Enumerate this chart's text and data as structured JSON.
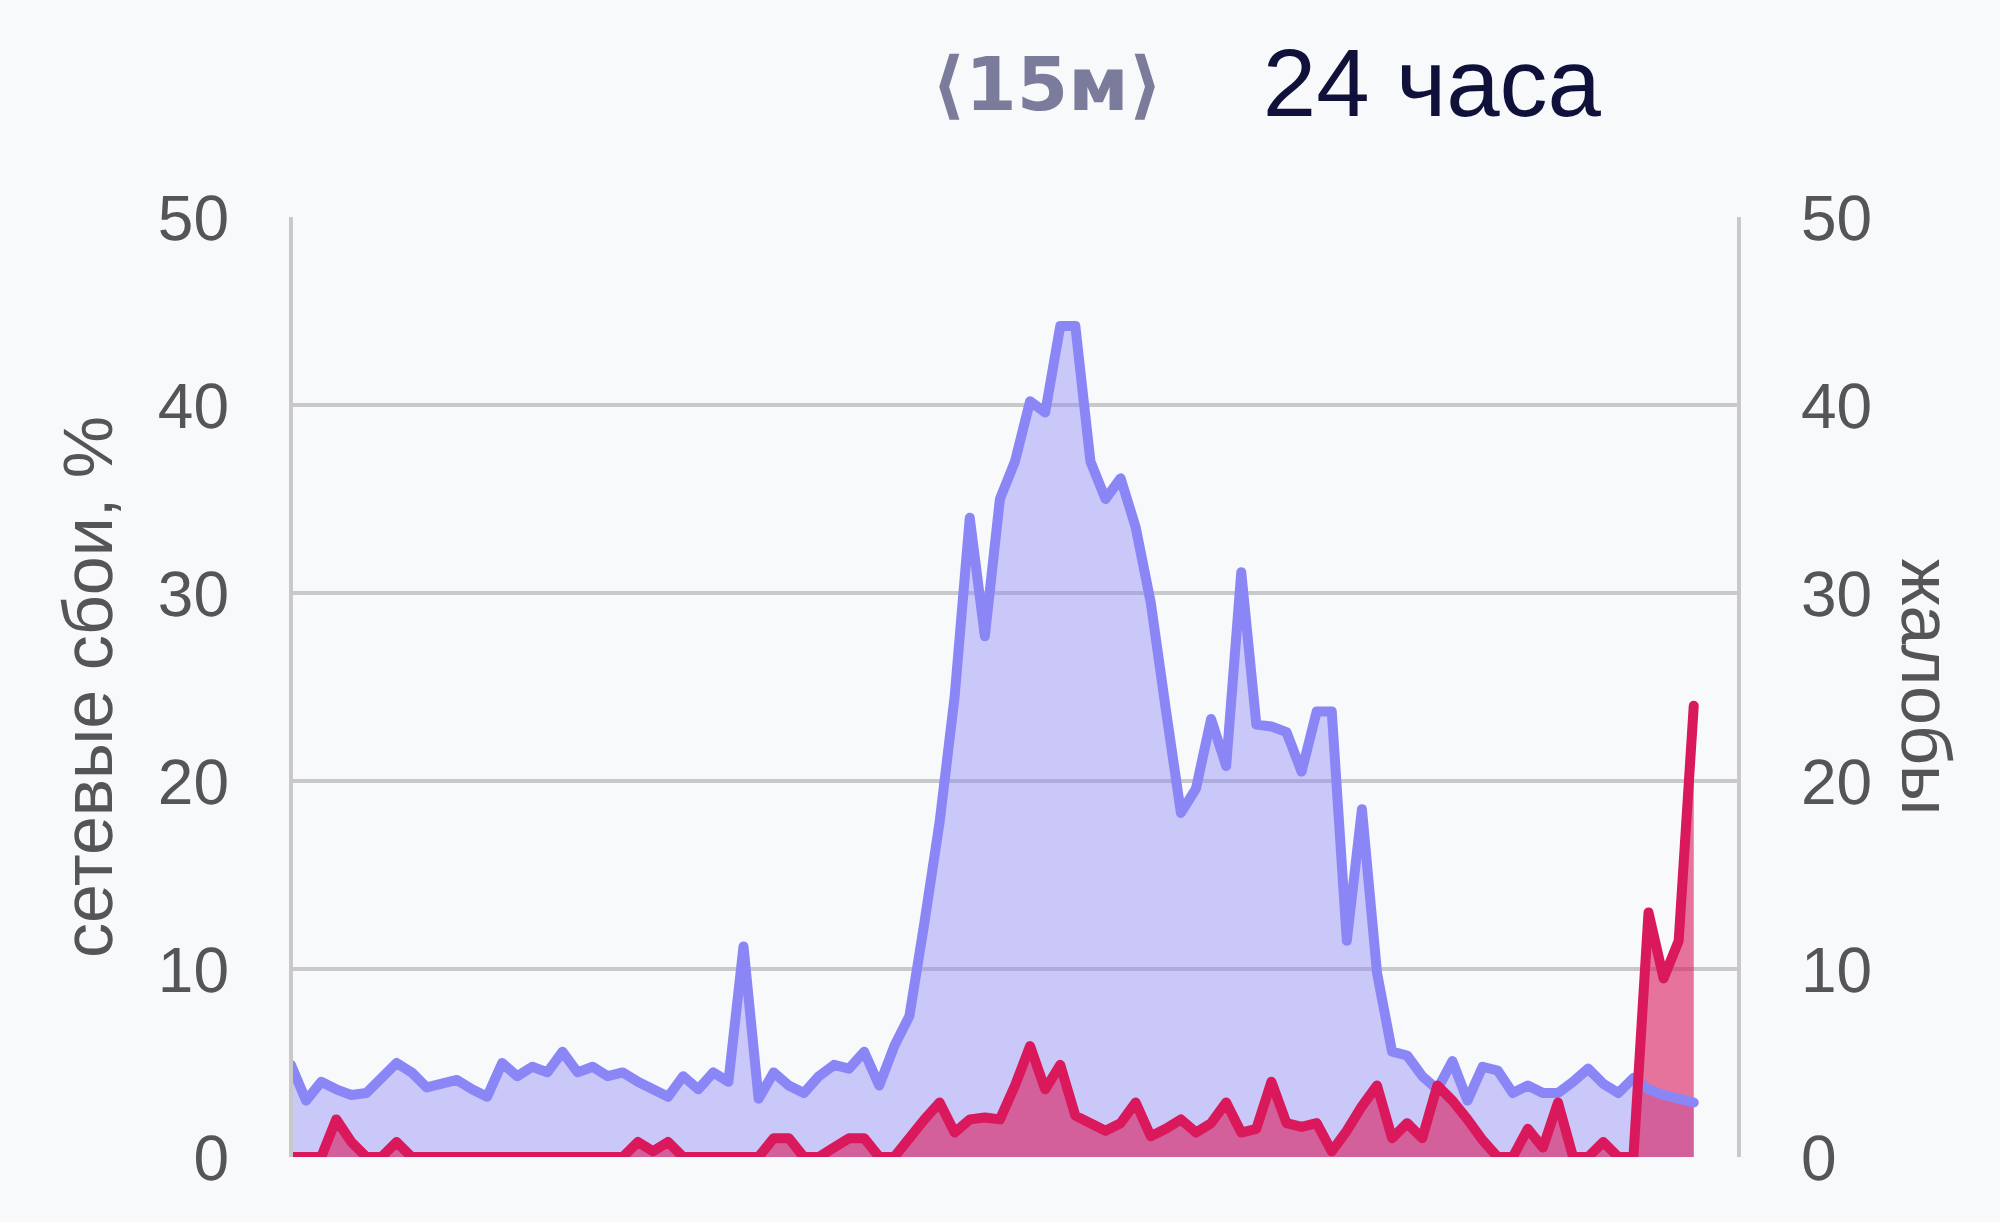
{
  "chart_data": {
    "type": "area",
    "title": "24 часа",
    "subtitle": "⟨15м⟩",
    "ylabel": "сетевые сбои, %",
    "y2label": "жалобы",
    "categories": [
      null,
      null,
      null,
      null,
      null,
      null,
      null,
      null,
      null,
      null,
      null,
      null,
      null,
      null,
      null,
      null,
      null,
      null,
      null,
      null,
      null,
      null,
      null,
      null,
      null,
      null,
      null,
      null,
      null,
      null,
      null,
      null,
      null,
      null,
      null,
      null,
      null,
      null,
      null,
      null,
      null,
      null,
      null,
      null,
      null,
      null,
      null,
      null,
      null,
      null,
      null,
      null,
      null,
      null,
      null,
      null,
      null,
      null,
      null,
      null,
      null,
      null,
      null,
      null,
      null,
      null,
      null,
      null,
      null,
      null,
      null,
      null,
      null,
      null,
      null,
      null,
      null,
      null,
      null,
      null,
      null,
      null,
      null,
      null,
      null,
      null,
      null,
      null,
      null,
      null,
      null,
      null,
      null,
      null
    ],
    "series": [
      {
        "color": "#8b86f6",
        "values": [
          4.9,
          3.0,
          4.0,
          3.6,
          3.3,
          3.4,
          4.2,
          5.0,
          4.5,
          3.7,
          3.9,
          4.1,
          3.6,
          3.2,
          5.0,
          4.3,
          4.8,
          4.5,
          5.6,
          4.5,
          4.8,
          4.3,
          4.5,
          4.0,
          3.6,
          3.2,
          4.3,
          3.6,
          4.5,
          4.0,
          11.2,
          3.1,
          4.5,
          3.8,
          3.4,
          4.3,
          4.9,
          4.7,
          5.6,
          3.8,
          5.9,
          7.5,
          12.5,
          17.8,
          24.5,
          34.0,
          27.7,
          35.0,
          37.0,
          40.2,
          39.6,
          44.2,
          44.2,
          37.0,
          35.0,
          36.1,
          33.5,
          29.5,
          23.8,
          18.3,
          19.6,
          23.3,
          20.8,
          31.1,
          23.0,
          22.9,
          22.6,
          20.5,
          23.7,
          23.7,
          11.5,
          18.5,
          9.8,
          5.6,
          5.4,
          4.3,
          3.6,
          5.1,
          3.0,
          4.8,
          4.6,
          3.4,
          3.8,
          3.4,
          3.4,
          4.0,
          4.7,
          3.9,
          3.4,
          4.2,
          3.6,
          3.3,
          3.1,
          2.9
        ]
      },
      {
        "color": "#d9195c",
        "axis": "y2",
        "values": [
          0,
          0,
          0,
          2.0,
          0.8,
          0,
          0,
          0.8,
          0,
          0,
          0,
          0,
          0,
          0,
          0,
          0,
          0,
          0,
          0,
          0,
          0,
          0,
          0,
          0.8,
          0.3,
          0.8,
          0,
          0,
          0,
          0,
          0,
          0,
          1.0,
          1.0,
          0,
          0,
          0.5,
          1.0,
          1.0,
          0,
          0,
          1.0,
          2.0,
          2.9,
          1.3,
          2.0,
          2.1,
          2.0,
          3.8,
          5.9,
          3.6,
          4.9,
          2.2,
          1.8,
          1.4,
          1.8,
          2.9,
          1.1,
          1.5,
          2.0,
          1.3,
          1.8,
          2.9,
          1.3,
          1.5,
          4.0,
          1.8,
          1.6,
          1.8,
          0.3,
          1.4,
          2.7,
          3.8,
          1.0,
          1.8,
          1.0,
          3.8,
          3.0,
          2.0,
          0.9,
          0,
          0,
          1.5,
          0.5,
          2.9,
          0,
          0,
          0.8,
          0,
          0,
          13.0,
          9.5,
          11.5,
          24.0
        ]
      }
    ],
    "ylim": [
      0,
      50
    ],
    "yticks": [
      0,
      10,
      20,
      30,
      40,
      50
    ],
    "y2lim": [
      0,
      50
    ],
    "y2ticks": [
      0,
      10,
      20,
      30,
      40,
      50
    ],
    "grid": "y"
  }
}
